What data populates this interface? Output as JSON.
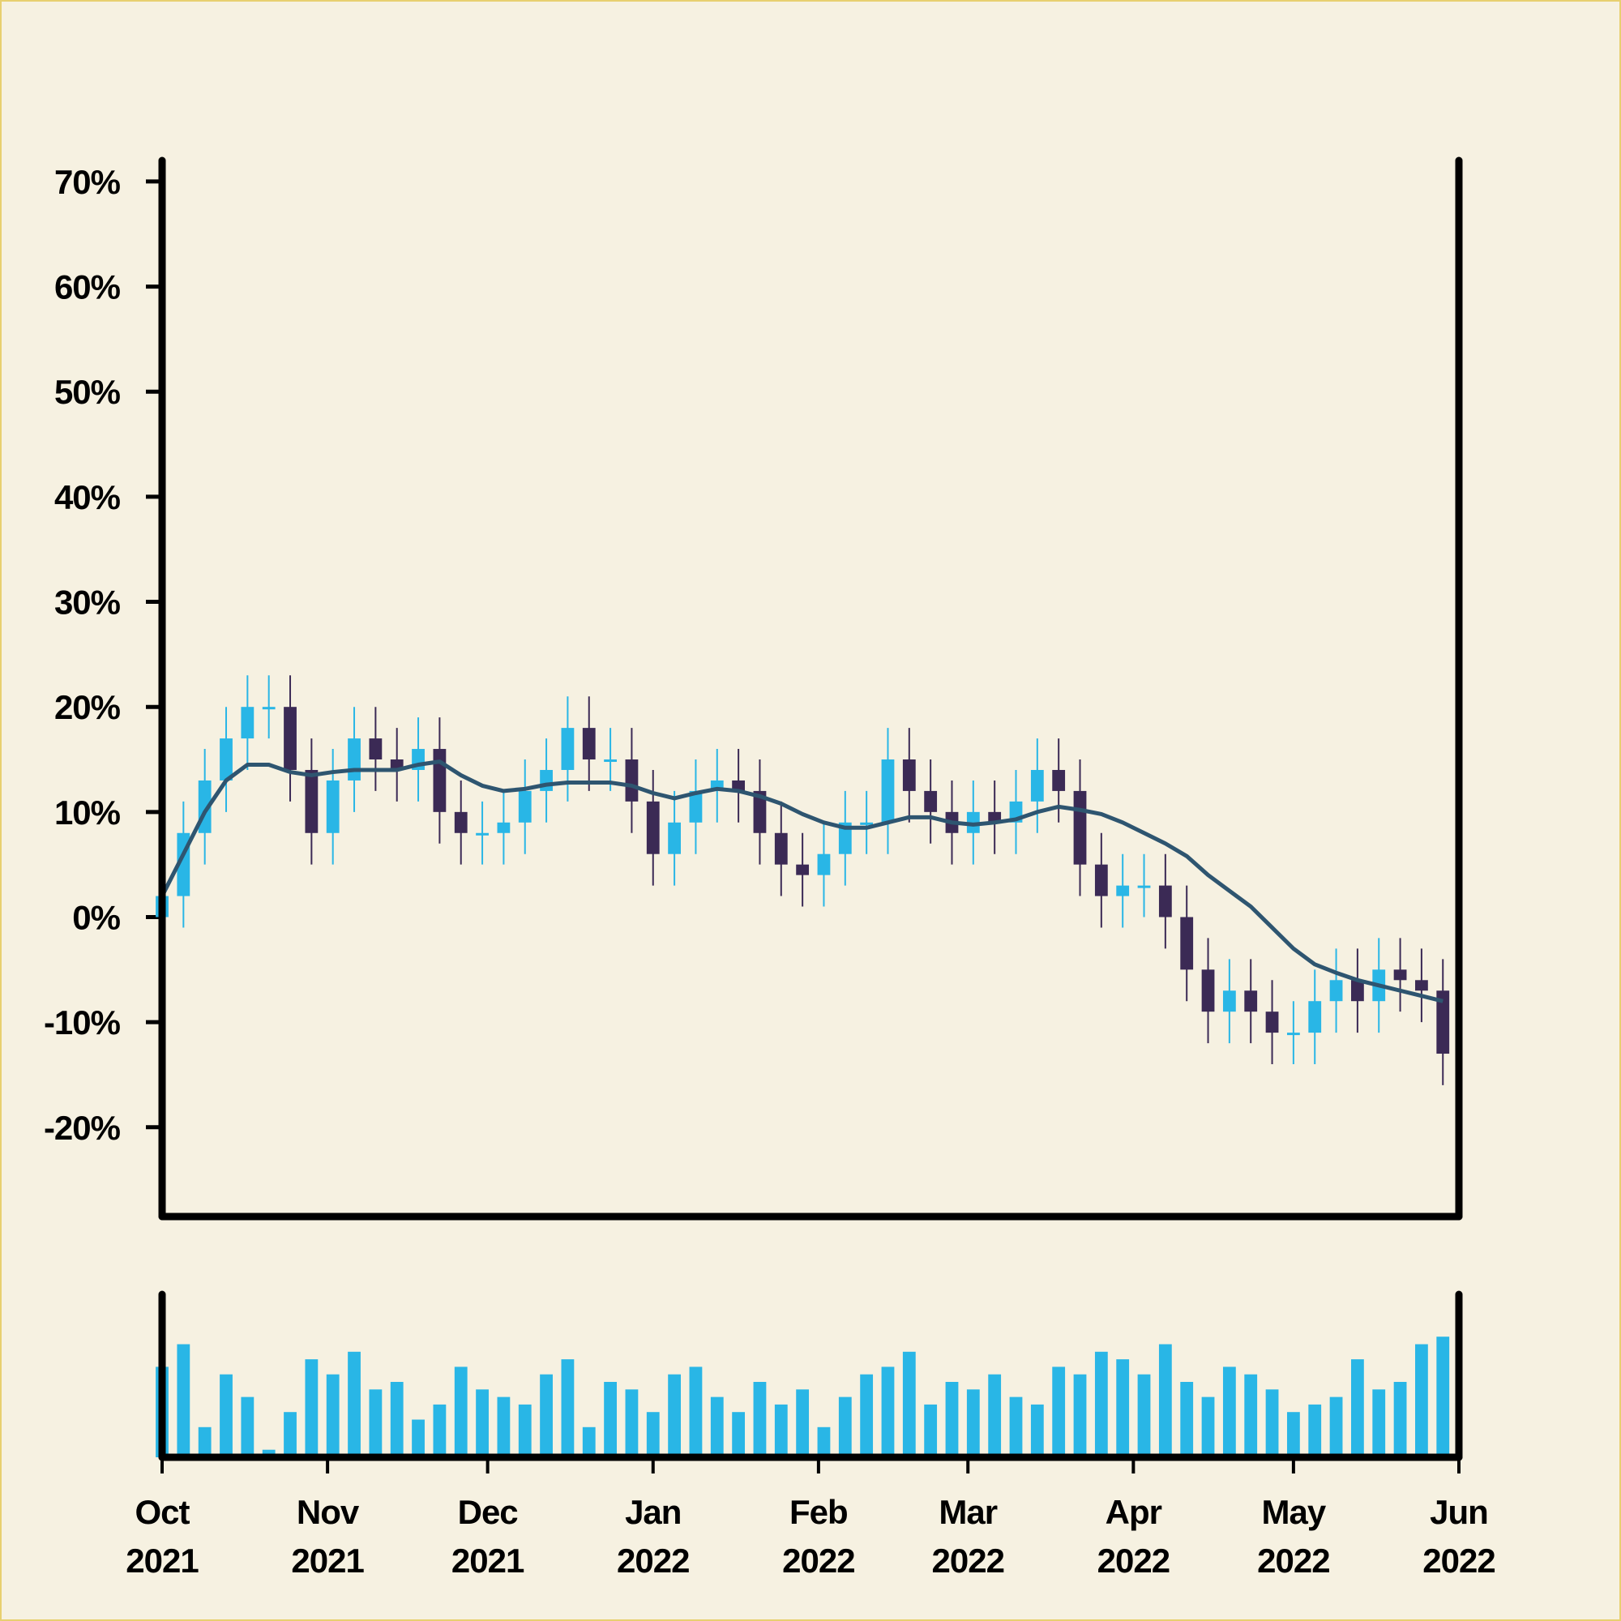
{
  "chart_data": {
    "type": "candlestick",
    "x": [
      "2021-10-01",
      "2021-10-05",
      "2021-10-09",
      "2021-10-13",
      "2021-10-17",
      "2021-10-21",
      "2021-10-25",
      "2021-10-29",
      "2021-11-02",
      "2021-11-06",
      "2021-11-10",
      "2021-11-14",
      "2021-11-18",
      "2021-11-22",
      "2021-11-26",
      "2021-11-30",
      "2021-12-04",
      "2021-12-08",
      "2021-12-12",
      "2021-12-16",
      "2021-12-20",
      "2021-12-24",
      "2021-12-28",
      "2022-01-01",
      "2022-01-05",
      "2022-01-09",
      "2022-01-13",
      "2022-01-17",
      "2022-01-21",
      "2022-01-25",
      "2022-01-29",
      "2022-02-02",
      "2022-02-06",
      "2022-02-10",
      "2022-02-14",
      "2022-02-18",
      "2022-02-22",
      "2022-02-26",
      "2022-03-02",
      "2022-03-06",
      "2022-03-10",
      "2022-03-14",
      "2022-03-18",
      "2022-03-22",
      "2022-03-26",
      "2022-03-30",
      "2022-04-03",
      "2022-04-07",
      "2022-04-11",
      "2022-04-15",
      "2022-04-19",
      "2022-04-23",
      "2022-04-27",
      "2022-05-01",
      "2022-05-05",
      "2022-05-09",
      "2022-05-13",
      "2022-05-17",
      "2022-05-21",
      "2022-05-25",
      "2022-05-29"
    ],
    "open": [
      0,
      2,
      8,
      13,
      17,
      20,
      20,
      14,
      8,
      13,
      17,
      15,
      14,
      16,
      10,
      8,
      8,
      9,
      12,
      14,
      18,
      15,
      15,
      11,
      6,
      9,
      12,
      13,
      12,
      8,
      5,
      4,
      6,
      9,
      9,
      15,
      12,
      10,
      8,
      10,
      9,
      11,
      14,
      12,
      5,
      2,
      3,
      3,
      0,
      -5,
      -9,
      -7,
      -9,
      -11,
      -11,
      -8,
      -6,
      -8,
      -5,
      -6,
      -7
    ],
    "high": [
      5,
      11,
      16,
      20,
      23,
      23,
      23,
      17,
      16,
      20,
      20,
      18,
      19,
      19,
      13,
      11,
      12,
      15,
      17,
      21,
      21,
      18,
      18,
      14,
      12,
      15,
      16,
      16,
      15,
      11,
      8,
      9,
      12,
      12,
      18,
      18,
      15,
      13,
      13,
      13,
      14,
      17,
      17,
      15,
      8,
      6,
      6,
      6,
      3,
      -2,
      -4,
      -4,
      -6,
      -8,
      -5,
      -3,
      -3,
      -2,
      -2,
      -3,
      -4
    ],
    "low": [
      -3,
      -1,
      5,
      10,
      14,
      17,
      11,
      5,
      5,
      10,
      12,
      11,
      11,
      7,
      5,
      5,
      5,
      6,
      9,
      11,
      12,
      12,
      8,
      3,
      3,
      6,
      9,
      9,
      5,
      2,
      1,
      1,
      3,
      6,
      6,
      9,
      7,
      5,
      5,
      6,
      6,
      8,
      9,
      2,
      -1,
      -1,
      0,
      -3,
      -8,
      -12,
      -12,
      -12,
      -14,
      -14,
      -14,
      -11,
      -11,
      -11,
      -9,
      -10,
      -16
    ],
    "close": [
      2,
      8,
      13,
      17,
      20,
      20,
      14,
      8,
      13,
      17,
      15,
      14,
      16,
      10,
      8,
      8,
      9,
      12,
      14,
      18,
      15,
      15,
      11,
      6,
      9,
      12,
      13,
      12,
      8,
      5,
      4,
      6,
      9,
      9,
      15,
      12,
      10,
      8,
      10,
      9,
      11,
      14,
      12,
      5,
      2,
      3,
      3,
      0,
      -5,
      -9,
      -7,
      -9,
      -11,
      -11,
      -8,
      -6,
      -8,
      -5,
      -6,
      -7,
      -13
    ],
    "moving_average": [
      2,
      6,
      10,
      13,
      14.5,
      14.5,
      13.8,
      13.5,
      13.8,
      14,
      14,
      14,
      14.5,
      14.8,
      13.5,
      12.5,
      12,
      12.2,
      12.6,
      12.8,
      12.8,
      12.8,
      12.5,
      11.8,
      11.3,
      11.8,
      12.2,
      12,
      11.5,
      10.8,
      9.8,
      9,
      8.5,
      8.5,
      9,
      9.5,
      9.5,
      9,
      8.8,
      9,
      9.3,
      10,
      10.5,
      10.2,
      9.8,
      9,
      8,
      7,
      5.8,
      4,
      2.5,
      1,
      -1,
      -3,
      -4.5,
      -5.3,
      -6,
      -6.5,
      -7,
      -7.5,
      -8
    ],
    "volume": [
      60,
      75,
      20,
      55,
      40,
      5,
      30,
      65,
      55,
      70,
      45,
      50,
      25,
      35,
      60,
      45,
      40,
      35,
      55,
      65,
      20,
      50,
      45,
      30,
      55,
      60,
      40,
      30,
      50,
      35,
      45,
      20,
      40,
      55,
      60,
      70,
      35,
      50,
      45,
      55,
      40,
      35,
      60,
      55,
      70,
      65,
      55,
      75,
      50,
      40,
      60,
      55,
      45,
      30,
      35,
      40,
      65,
      45,
      50,
      75,
      80
    ],
    "up_color": "#29b6e6",
    "down_color": "#3b2a55",
    "ma_color": "#2e5570",
    "volume_color": "#29b6e6",
    "xlim": [
      "2021-10-01",
      "2022-06-01"
    ],
    "xticks": [
      {
        "value": "2021-10-01",
        "label": [
          "Oct",
          "2021"
        ]
      },
      {
        "value": "2021-11-01",
        "label": [
          "Nov",
          "2021"
        ]
      },
      {
        "value": "2021-12-01",
        "label": [
          "Dec",
          "2021"
        ]
      },
      {
        "value": "2022-01-01",
        "label": [
          "Jan",
          "2022"
        ]
      },
      {
        "value": "2022-02-01",
        "label": [
          "Feb",
          "2022"
        ]
      },
      {
        "value": "2022-03-01",
        "label": [
          "Mar",
          "2022"
        ]
      },
      {
        "value": "2022-04-01",
        "label": [
          "Apr",
          "2022"
        ]
      },
      {
        "value": "2022-05-01",
        "label": [
          "May",
          "2022"
        ]
      },
      {
        "value": "2022-06-01",
        "label": [
          "Jun",
          "2022"
        ]
      }
    ],
    "ylim": [
      -28.5,
      72
    ],
    "yticks": [
      {
        "value": 70,
        "label": "70%"
      },
      {
        "value": 60,
        "label": "60%"
      },
      {
        "value": 50,
        "label": "50%"
      },
      {
        "value": 40,
        "label": "40%"
      },
      {
        "value": 30,
        "label": "30%"
      },
      {
        "value": 20,
        "label": "20%"
      },
      {
        "value": 10,
        "label": "10%"
      },
      {
        "value": 0,
        "label": "0%"
      },
      {
        "value": -10,
        "label": "-10%"
      },
      {
        "value": -20,
        "label": "-20%"
      }
    ],
    "volume_ylim": [
      0,
      100
    ]
  }
}
